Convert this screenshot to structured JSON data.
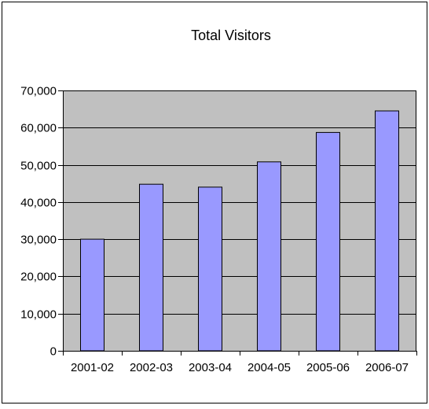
{
  "chart_data": {
    "type": "bar",
    "title": "Total Visitors",
    "xlabel": "",
    "ylabel": "",
    "categories": [
      "2001-02",
      "2002-03",
      "2003-04",
      "2004-05",
      "2005-06",
      "2006-07"
    ],
    "values": [
      30000,
      44800,
      44000,
      50800,
      58700,
      64500
    ],
    "ylim": [
      0,
      70000
    ],
    "yticks": [
      0,
      10000,
      20000,
      30000,
      40000,
      50000,
      60000,
      70000
    ],
    "ytick_labels": [
      "0",
      "10,000",
      "20,000",
      "30,000",
      "40,000",
      "50,000",
      "60,000",
      "70,000"
    ],
    "grid": true,
    "legend": "none",
    "colors": {
      "plot_background": "#c0c0c0",
      "bar_fill": "#9999ff",
      "bar_stroke": "#000000",
      "gridline": "#000000",
      "frame": "#000000"
    }
  }
}
